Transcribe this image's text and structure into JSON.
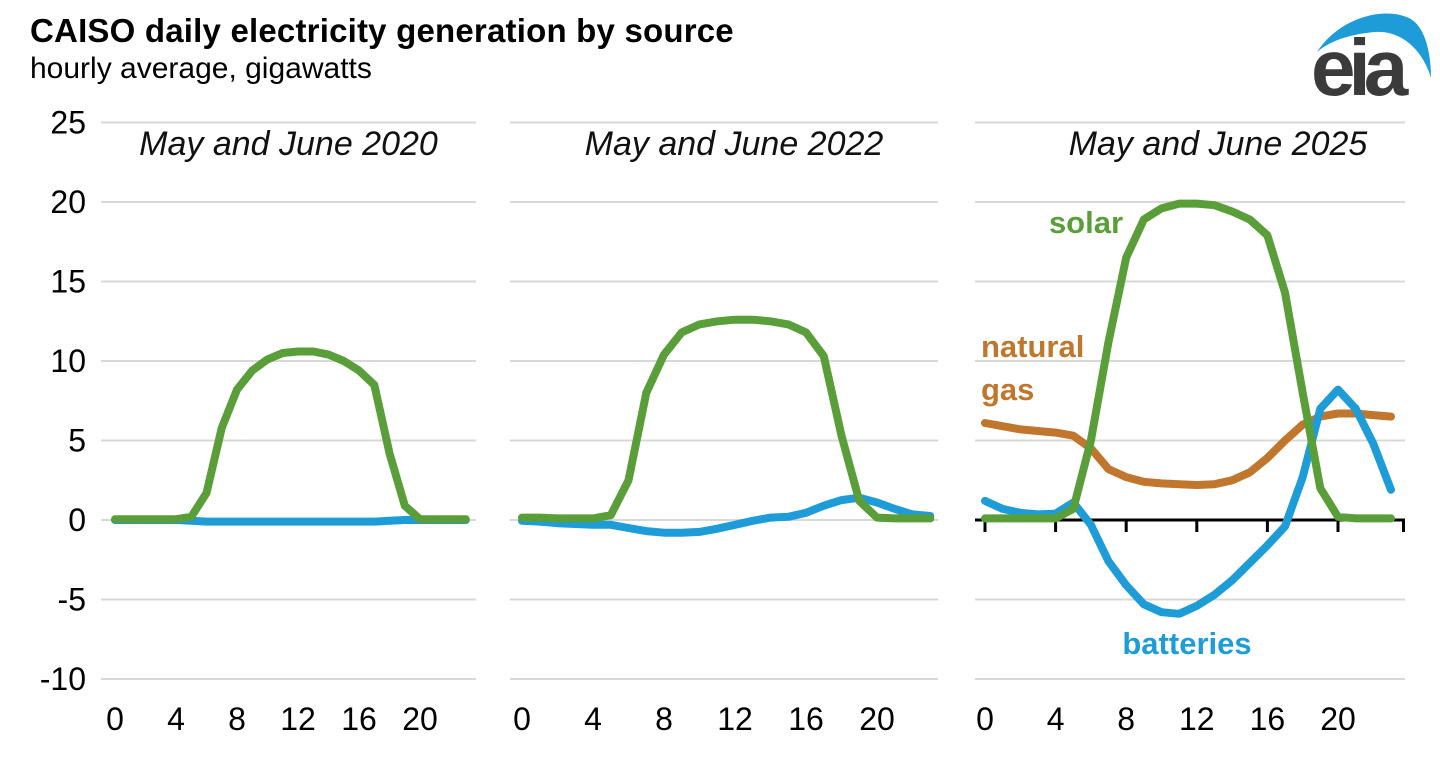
{
  "header": {
    "title": "CAISO daily electricity generation by source",
    "subtitle": "hourly average, gigawatts"
  },
  "logo": {
    "text": "eia"
  },
  "colors": {
    "solar": "#5a9e3a",
    "batteries": "#1d9cd8",
    "natural_gas": "#c0762c",
    "gridline": "#d8d8d8",
    "axis": "#000000",
    "text": "#000000",
    "panel_title": "#111111",
    "logo_text": "#3b3b3b",
    "logo_swoosh": "#1d9cd8"
  },
  "y_axis": {
    "tick_values": [
      25,
      20,
      15,
      10,
      5,
      0,
      -5,
      -10
    ]
  },
  "x_axis": {
    "tick_hours": [
      0,
      4,
      8,
      12,
      16,
      20
    ]
  },
  "chart_data": [
    {
      "type": "line",
      "title": "May and June 2020",
      "ylim": [
        -10,
        25
      ],
      "x": [
        0,
        1,
        2,
        3,
        4,
        5,
        6,
        7,
        8,
        9,
        10,
        11,
        12,
        13,
        14,
        15,
        16,
        17,
        18,
        19,
        20,
        21,
        22,
        23
      ],
      "series": [
        {
          "key": "batteries",
          "name": "batteries",
          "values": [
            0,
            0,
            0,
            0,
            0,
            -0.05,
            -0.1,
            -0.1,
            -0.1,
            -0.1,
            -0.1,
            -0.1,
            -0.1,
            -0.1,
            -0.1,
            -0.1,
            -0.1,
            -0.1,
            -0.05,
            0,
            0,
            0,
            0,
            0
          ]
        },
        {
          "key": "solar",
          "name": "solar",
          "values": [
            0.05,
            0.05,
            0.05,
            0.05,
            0.05,
            0.2,
            1.7,
            5.8,
            8.2,
            9.4,
            10.1,
            10.5,
            10.6,
            10.6,
            10.4,
            10.0,
            9.4,
            8.5,
            4.2,
            0.9,
            0.05,
            0.05,
            0.05,
            0.05
          ]
        }
      ]
    },
    {
      "type": "line",
      "title": "May and June 2022",
      "ylim": [
        -10,
        25
      ],
      "x": [
        0,
        1,
        2,
        3,
        4,
        5,
        6,
        7,
        8,
        9,
        10,
        11,
        12,
        13,
        14,
        15,
        16,
        17,
        18,
        19,
        20,
        21,
        22,
        23
      ],
      "series": [
        {
          "key": "batteries",
          "name": "batteries",
          "values": [
            -0.05,
            -0.1,
            -0.2,
            -0.25,
            -0.3,
            -0.3,
            -0.5,
            -0.7,
            -0.8,
            -0.8,
            -0.75,
            -0.55,
            -0.3,
            -0.05,
            0.15,
            0.2,
            0.45,
            0.9,
            1.25,
            1.4,
            1.1,
            0.7,
            0.35,
            0.25
          ]
        },
        {
          "key": "solar",
          "name": "solar",
          "values": [
            0.15,
            0.15,
            0.1,
            0.1,
            0.1,
            0.3,
            2.5,
            8.0,
            10.4,
            11.8,
            12.3,
            12.5,
            12.6,
            12.6,
            12.5,
            12.3,
            11.8,
            10.3,
            5.3,
            1.2,
            0.15,
            0.1,
            0.1,
            0.1
          ]
        }
      ]
    },
    {
      "type": "line",
      "title": "May and June 2025",
      "ylim": [
        -10,
        25
      ],
      "zero_axis": true,
      "x": [
        0,
        1,
        2,
        3,
        4,
        5,
        6,
        7,
        8,
        9,
        10,
        11,
        12,
        13,
        14,
        15,
        16,
        17,
        18,
        19,
        20,
        21,
        22,
        23
      ],
      "series": [
        {
          "key": "natural_gas",
          "name": "natural gas",
          "label_lines": [
            "natural",
            "gas"
          ],
          "values": [
            6.1,
            5.9,
            5.7,
            5.6,
            5.5,
            5.3,
            4.5,
            3.2,
            2.7,
            2.4,
            2.3,
            2.25,
            2.2,
            2.25,
            2.5,
            3.0,
            3.9,
            5.0,
            6.0,
            6.5,
            6.7,
            6.7,
            6.6,
            6.5
          ]
        },
        {
          "key": "batteries",
          "name": "batteries",
          "label": "batteries",
          "values": [
            1.2,
            0.7,
            0.45,
            0.35,
            0.4,
            1.1,
            -0.3,
            -2.6,
            -4.1,
            -5.3,
            -5.8,
            -5.9,
            -5.4,
            -4.7,
            -3.8,
            -2.7,
            -1.6,
            -0.4,
            2.7,
            7.0,
            8.2,
            7.0,
            4.8,
            1.9
          ]
        },
        {
          "key": "solar",
          "name": "solar",
          "label": "solar",
          "values": [
            0.1,
            0.1,
            0.1,
            0.1,
            0.1,
            0.7,
            5.0,
            11.2,
            16.5,
            18.9,
            19.6,
            19.9,
            19.9,
            19.8,
            19.4,
            18.9,
            17.9,
            14.3,
            8.0,
            2.0,
            0.2,
            0.1,
            0.1,
            0.1
          ]
        }
      ]
    }
  ]
}
